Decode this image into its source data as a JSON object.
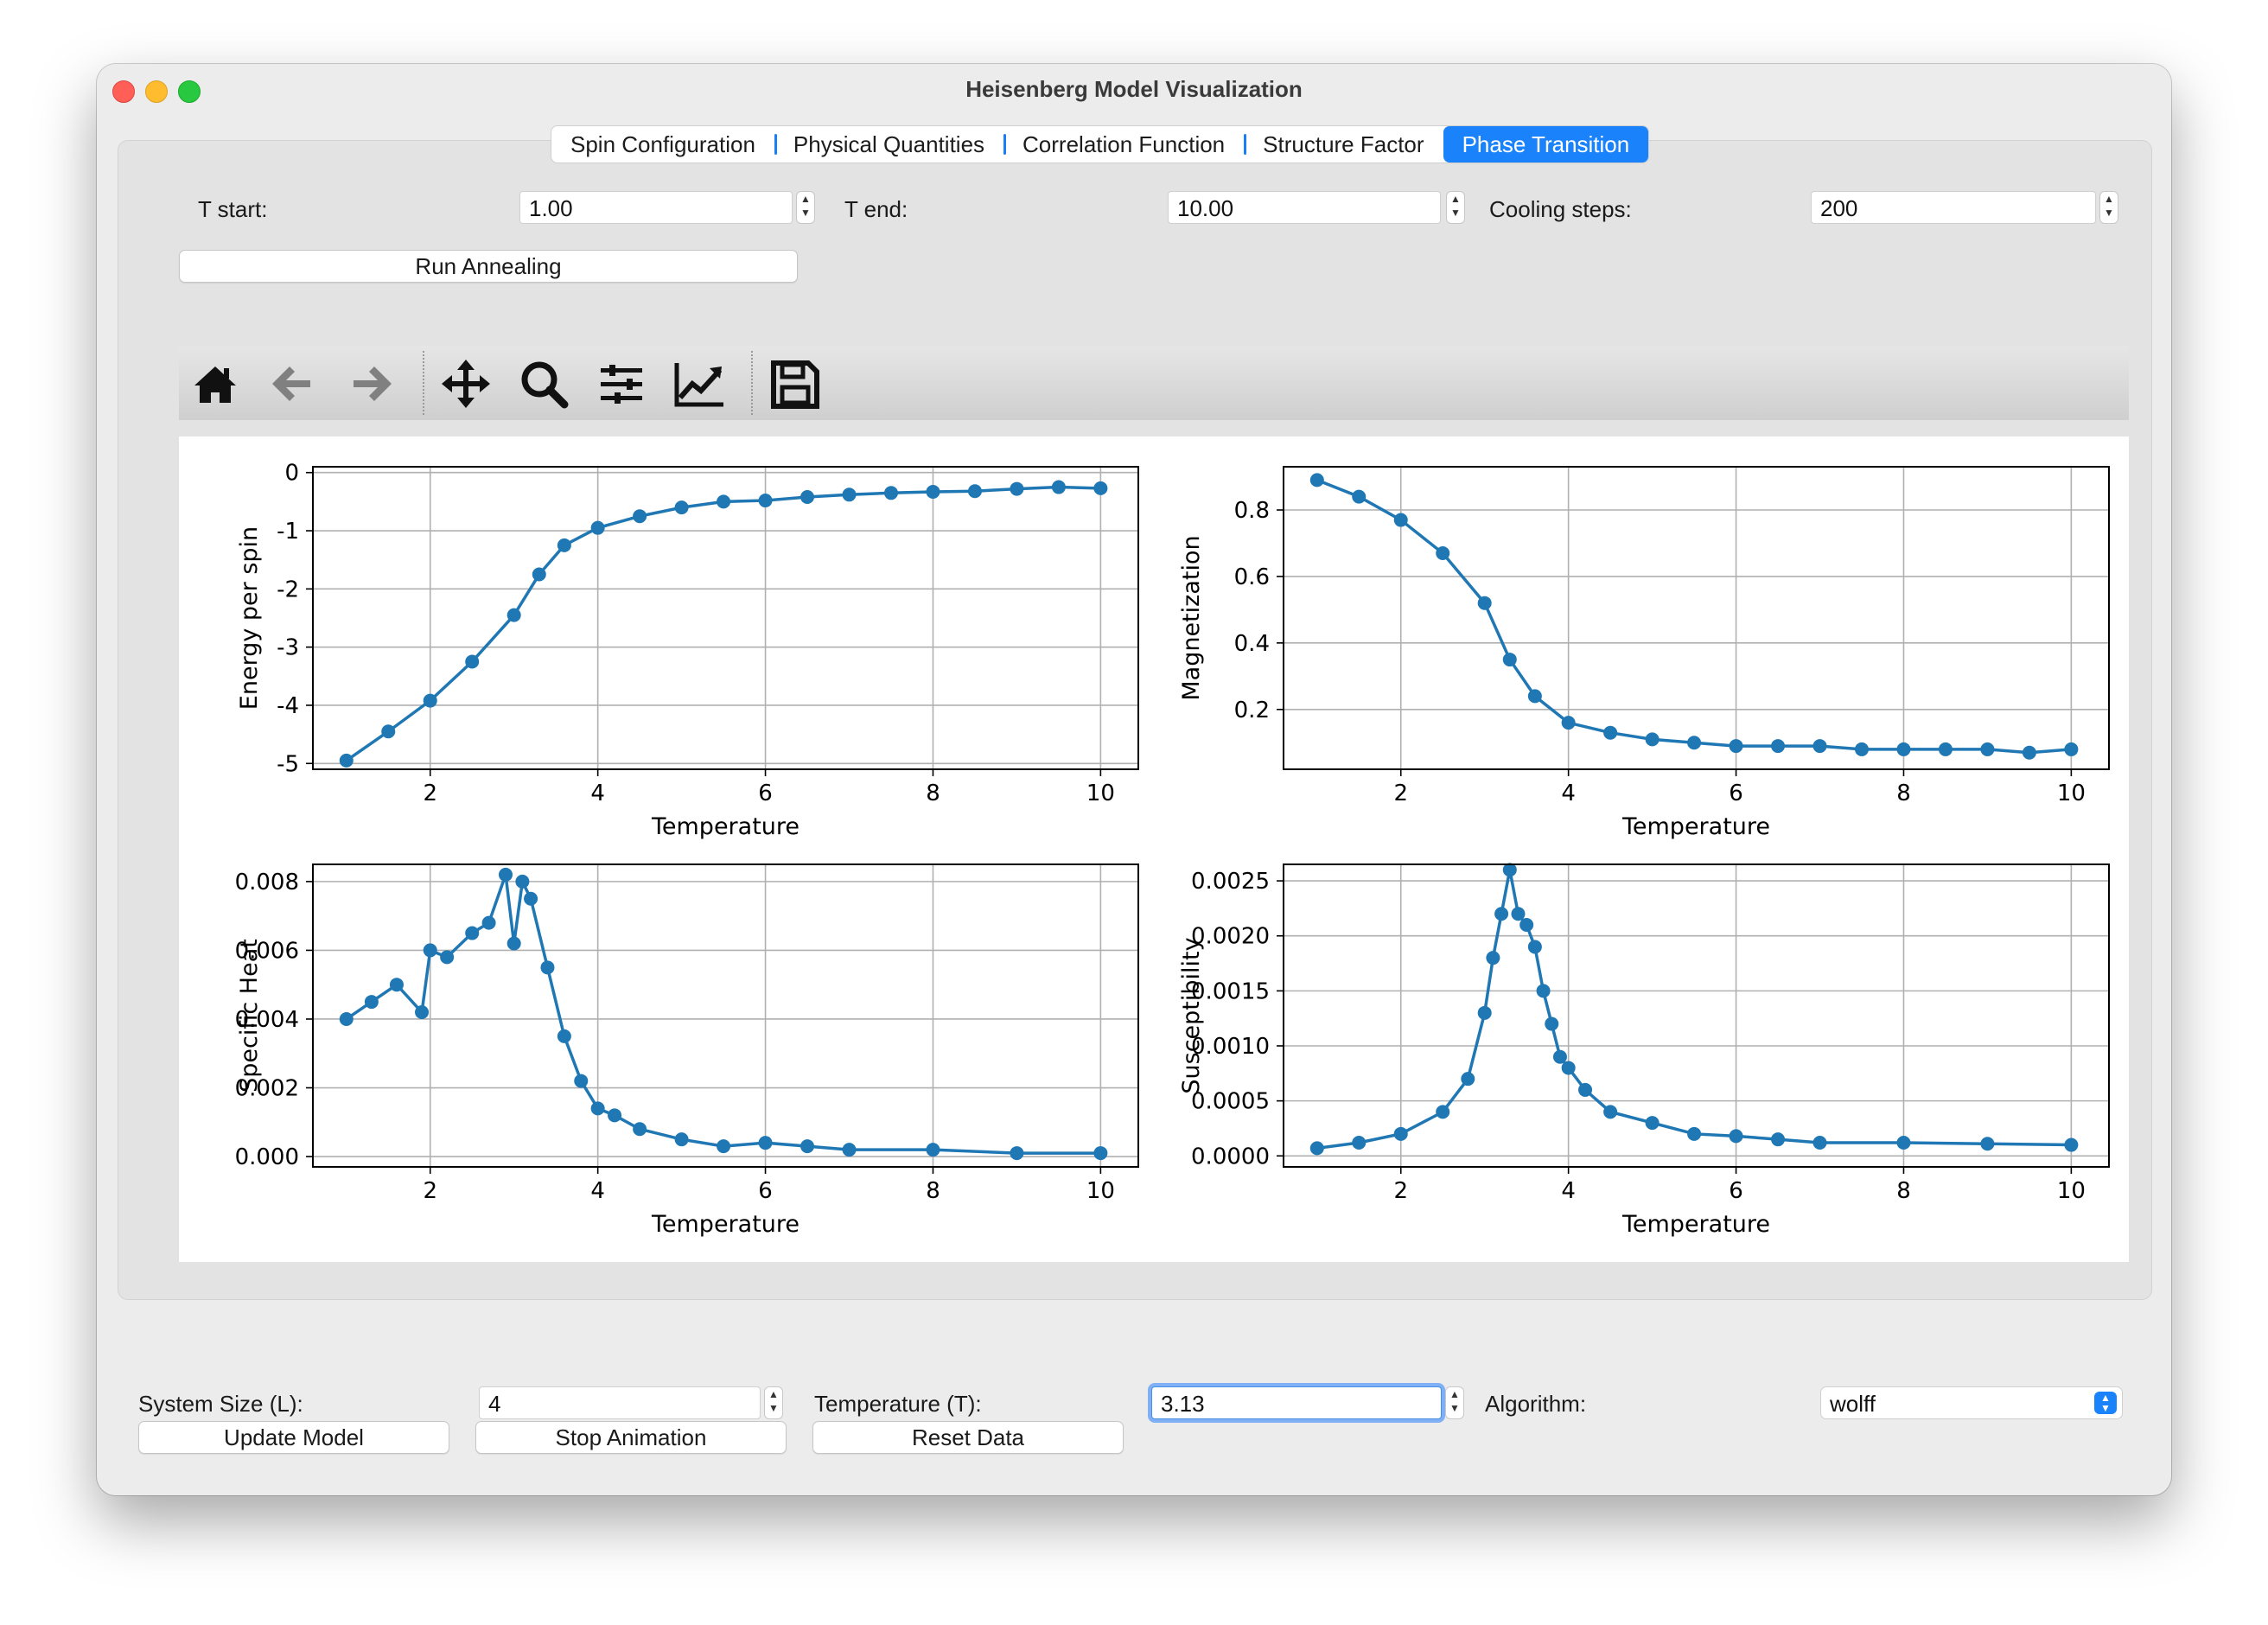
{
  "window": {
    "title": "Heisenberg Model Visualization"
  },
  "tabs": [
    {
      "label": "Spin Configuration",
      "active": false
    },
    {
      "label": "Physical Quantities",
      "active": false
    },
    {
      "label": "Correlation Function",
      "active": false
    },
    {
      "label": "Structure Factor",
      "active": false
    },
    {
      "label": "Phase Transition",
      "active": true
    }
  ],
  "annealing": {
    "t_start_label": "T start:",
    "t_start_value": "1.00",
    "t_end_label": "T end:",
    "t_end_value": "10.00",
    "cooling_label": "Cooling steps:",
    "cooling_value": "200",
    "run_label": "Run Annealing"
  },
  "toolbar": {
    "icons": [
      "home-icon",
      "back-arrow-icon",
      "forward-arrow-icon",
      "pan-icon",
      "zoom-icon",
      "configure-subplots-icon",
      "edit-axis-icon",
      "save-icon"
    ]
  },
  "controls": {
    "size_label": "System Size (L):",
    "size_value": "4",
    "temp_label": "Temperature (T):",
    "temp_value": "3.13",
    "algo_label": "Algorithm:",
    "algo_value": "wolff",
    "update_label": "Update Model",
    "stop_label": "Stop Animation",
    "reset_label": "Reset Data"
  },
  "colors": {
    "series": "#1f77b4",
    "accent": "#1a82fb"
  },
  "chart_data": [
    {
      "type": "line",
      "xlabel": "Temperature",
      "ylabel": "Energy per spin",
      "xlim": [
        0.6,
        10.45
      ],
      "ylim": [
        -5.1,
        0.1
      ],
      "xticks": [
        "2",
        "4",
        "6",
        "8",
        "10"
      ],
      "yticks": [
        "0",
        "-1",
        "-2",
        "-3",
        "-4",
        "-5"
      ],
      "grid": true,
      "series": [
        {
          "x": [
            1.0,
            1.5,
            2.0,
            2.5,
            3.0,
            3.3,
            3.6,
            4.0,
            4.5,
            5.0,
            5.5,
            6.0,
            6.5,
            7.0,
            7.5,
            8.0,
            8.5,
            9.0,
            9.5,
            10.0
          ],
          "y": [
            -4.95,
            -4.45,
            -3.92,
            -3.25,
            -2.45,
            -1.75,
            -1.25,
            -0.95,
            -0.75,
            -0.6,
            -0.5,
            -0.48,
            -0.42,
            -0.38,
            -0.35,
            -0.33,
            -0.32,
            -0.28,
            -0.25,
            -0.27
          ]
        }
      ]
    },
    {
      "type": "line",
      "xlabel": "Temperature",
      "ylabel": "Magnetization",
      "xlim": [
        0.6,
        10.45
      ],
      "ylim": [
        0.02,
        0.93
      ],
      "xticks": [
        "2",
        "4",
        "6",
        "8",
        "10"
      ],
      "yticks": [
        "0.8",
        "0.6",
        "0.4",
        "0.2"
      ],
      "grid": true,
      "series": [
        {
          "x": [
            1.0,
            1.5,
            2.0,
            2.5,
            3.0,
            3.3,
            3.6,
            4.0,
            4.5,
            5.0,
            5.5,
            6.0,
            6.5,
            7.0,
            7.5,
            8.0,
            8.5,
            9.0,
            9.5,
            10.0
          ],
          "y": [
            0.89,
            0.84,
            0.77,
            0.67,
            0.52,
            0.35,
            0.24,
            0.16,
            0.13,
            0.11,
            0.1,
            0.09,
            0.09,
            0.09,
            0.08,
            0.08,
            0.08,
            0.08,
            0.07,
            0.08
          ]
        }
      ]
    },
    {
      "type": "line",
      "xlabel": "Temperature",
      "ylabel": "Specific Heat",
      "xlim": [
        0.6,
        10.45
      ],
      "ylim": [
        -0.0003,
        0.0085
      ],
      "xticks": [
        "2",
        "4",
        "6",
        "8",
        "10"
      ],
      "yticks": [
        "0.008",
        "0.006",
        "0.004",
        "0.002",
        "0.000"
      ],
      "grid": true,
      "series": [
        {
          "x": [
            1.0,
            1.3,
            1.6,
            1.9,
            2.0,
            2.2,
            2.5,
            2.7,
            2.9,
            3.0,
            3.1,
            3.2,
            3.4,
            3.6,
            3.8,
            4.0,
            4.2,
            4.5,
            5.0,
            5.5,
            6.0,
            6.5,
            7.0,
            8.0,
            9.0,
            10.0
          ],
          "y": [
            0.004,
            0.0045,
            0.005,
            0.0042,
            0.006,
            0.0058,
            0.0065,
            0.0068,
            0.0082,
            0.0062,
            0.008,
            0.0075,
            0.0055,
            0.0035,
            0.0022,
            0.0014,
            0.0012,
            0.0008,
            0.0005,
            0.0003,
            0.0004,
            0.0003,
            0.0002,
            0.0002,
            0.0001,
            0.0001
          ]
        }
      ]
    },
    {
      "type": "line",
      "xlabel": "Temperature",
      "ylabel": "Susceptibility",
      "xlim": [
        0.6,
        10.45
      ],
      "ylim": [
        -0.0001,
        0.00265
      ],
      "xticks": [
        "2",
        "4",
        "6",
        "8",
        "10"
      ],
      "yticks": [
        "0.0025",
        "0.0020",
        "0.0015",
        "0.0010",
        "0.0005",
        "0.0000"
      ],
      "grid": true,
      "series": [
        {
          "x": [
            1.0,
            1.5,
            2.0,
            2.5,
            2.8,
            3.0,
            3.1,
            3.2,
            3.3,
            3.4,
            3.5,
            3.6,
            3.7,
            3.8,
            3.9,
            4.0,
            4.2,
            4.5,
            5.0,
            5.5,
            6.0,
            6.5,
            7.0,
            8.0,
            9.0,
            10.0
          ],
          "y": [
            7e-05,
            0.00012,
            0.0002,
            0.0004,
            0.0007,
            0.0013,
            0.0018,
            0.0022,
            0.0026,
            0.0022,
            0.0021,
            0.0019,
            0.0015,
            0.0012,
            0.0009,
            0.0008,
            0.0006,
            0.0004,
            0.0003,
            0.0002,
            0.00018,
            0.00015,
            0.00012,
            0.00012,
            0.00011,
            0.0001
          ]
        }
      ]
    }
  ]
}
